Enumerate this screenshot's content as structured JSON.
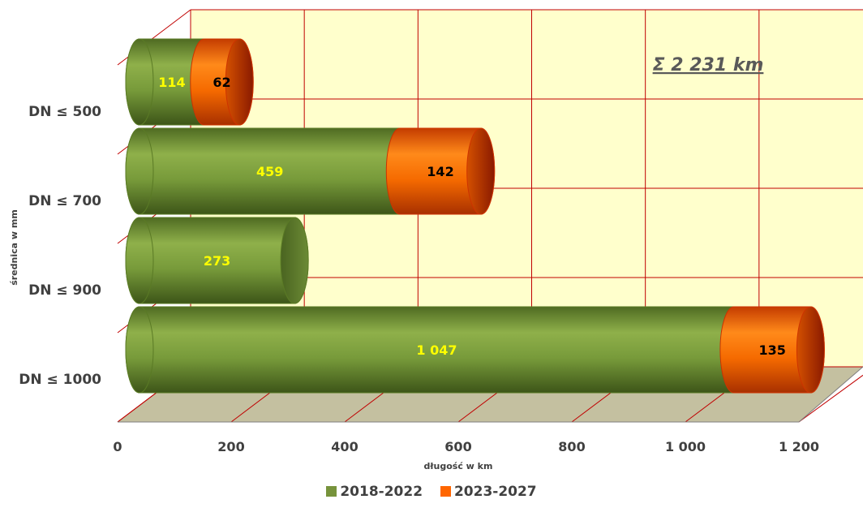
{
  "chart_data": {
    "type": "bar",
    "orientation": "horizontal",
    "stacked": true,
    "categories": [
      "DN ≤ 500",
      "DN ≤ 700",
      "DN ≤ 900",
      "DN ≤ 1000"
    ],
    "series": [
      {
        "name": "2018-2022",
        "values": [
          114,
          459,
          273,
          1047
        ],
        "labels": [
          "114",
          "459",
          "273",
          "1 047"
        ],
        "color": "#77933c"
      },
      {
        "name": "2023-2027",
        "values": [
          62,
          142,
          0,
          135
        ],
        "labels": [
          "62",
          "142",
          "",
          "135"
        ],
        "color": "#ff6600"
      }
    ],
    "xlabel": "długość w km",
    "ylabel": "średnica w mm",
    "xlim": [
      0,
      1200
    ],
    "xticks": [
      0,
      200,
      400,
      600,
      800,
      1000,
      1200
    ],
    "xtick_labels": [
      "0",
      "200",
      "400",
      "600",
      "800",
      "1 000",
      "1 200"
    ],
    "total_annotation": "Σ 2 231 km",
    "grid": true,
    "legend_position": "bottom",
    "wall_color": "#ffffcc",
    "grid_color": "#c00000",
    "floor_color": "#c4c0a0",
    "label_color_series1": "#ffff00",
    "label_color_series2": "#000000"
  }
}
